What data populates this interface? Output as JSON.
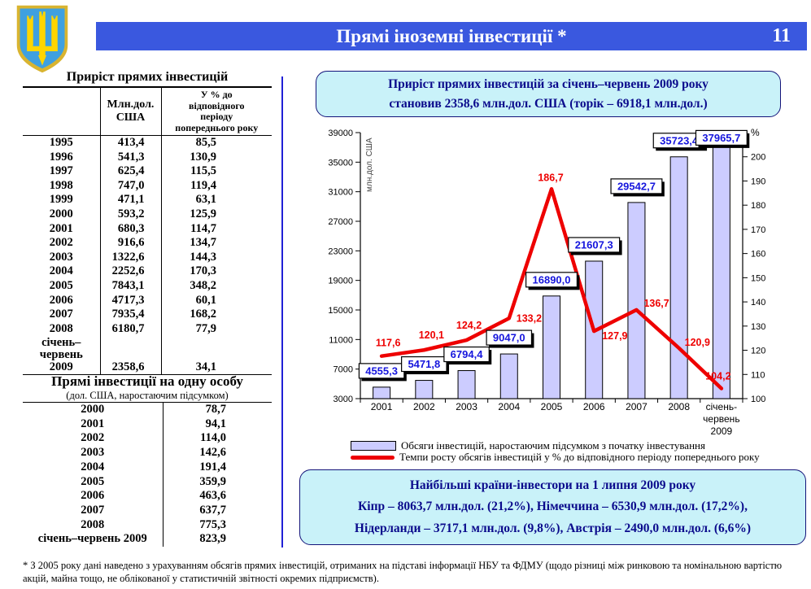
{
  "header": {
    "title": "Прямі іноземні інвестиції *",
    "page_number": "11"
  },
  "colors": {
    "header_blue": "#3a58df",
    "note_bg": "#c9f2f9",
    "note_border": "#14147a",
    "note_text": "#0a0a8c",
    "divider_blue": "#2121d6",
    "bar_fill": "#ccccff",
    "bar_stroke": "#000000",
    "line_red": "#ee0000",
    "bar_label_blue": "#1616dd"
  },
  "investment_growth_table": {
    "title": "Приріст прямих інвестицій",
    "header_value_col": "Млн.дол.\nСША",
    "header_pct_col": "У % до\nвідповідного\nперіоду\nпопереднього року",
    "rows": [
      {
        "year": "1995",
        "mln_usd": "413,4",
        "pct": "85,5"
      },
      {
        "year": "1996",
        "mln_usd": "541,3",
        "pct": "130,9"
      },
      {
        "year": "1997",
        "mln_usd": "625,4",
        "pct": "115,5"
      },
      {
        "year": "1998",
        "mln_usd": "747,0",
        "pct": "119,4"
      },
      {
        "year": "1999",
        "mln_usd": "471,1",
        "pct": "63,1"
      },
      {
        "year": "2000",
        "mln_usd": "593,2",
        "pct": "125,9"
      },
      {
        "year": "2001",
        "mln_usd": "680,3",
        "pct": "114,7"
      },
      {
        "year": "2002",
        "mln_usd": "916,6",
        "pct": "134,7"
      },
      {
        "year": "2003",
        "mln_usd": "1322,6",
        "pct": "144,3"
      },
      {
        "year": "2004",
        "mln_usd": "2252,6",
        "pct": "170,3"
      },
      {
        "year": "2005",
        "mln_usd": "7843,1",
        "pct": "348,2"
      },
      {
        "year": "2006",
        "mln_usd": "4717,3",
        "pct": "60,1"
      },
      {
        "year": "2007",
        "mln_usd": "7935,4",
        "pct": "168,2"
      },
      {
        "year": "2008",
        "mln_usd": "6180,7",
        "pct": "77,9"
      },
      {
        "year": "січень–\nчервень\n2009",
        "mln_usd": "2358,6",
        "pct": "34,1"
      }
    ]
  },
  "per_capita_table": {
    "title": "Прямі інвестиції на одну особу",
    "subtitle": "(дол. США, наростаючим підсумком)",
    "rows": [
      {
        "year": "2000",
        "value": "78,7"
      },
      {
        "year": "2001",
        "value": "94,1"
      },
      {
        "year": "2002",
        "value": "114,0"
      },
      {
        "year": "2003",
        "value": "142,6"
      },
      {
        "year": "2004",
        "value": "191,4"
      },
      {
        "year": "2005",
        "value": "359,9"
      },
      {
        "year": "2006",
        "value": "463,6"
      },
      {
        "year": "2007",
        "value": "637,7"
      },
      {
        "year": "2008",
        "value": "775,3"
      },
      {
        "year": "січень–червень 2009",
        "value": "823,9"
      }
    ]
  },
  "top_note": {
    "lines": [
      "Приріст прямих інвестицій за січень–червень 2009 року",
      "становив 2358,6 млн.дол. США (торік – 6918,1 млн.дол.)"
    ]
  },
  "bottom_note": {
    "lines": [
      "Найбільші країни-інвестори на 1 липня 2009 року",
      "Кіпр – 8063,7 млн.дол. (21,2%), Німеччина – 6530,9 млн.дол. (17,2%),",
      "Нідерланди – 3717,1 млн.дол. (9,8%), Австрія – 2490,0 млн.дол. (6,6%)"
    ]
  },
  "footnote": "* З 2005 року дані наведено з урахуванням обсягів прямих інвестицій, отриманих на підставі інформації НБУ та ФДМУ (щодо різниці між ринковою та номінальною вартістю акцій, майна тощо, не облікованої у статистичній звітності окремих підприємств).",
  "chart_data": {
    "type": "bar",
    "combo": "bar+line, dual axis",
    "categories": [
      "2001",
      "2002",
      "2003",
      "2004",
      "2005",
      "2006",
      "2007",
      "2008",
      "січень-\nчервень\n2009"
    ],
    "series": [
      {
        "name": "Обсяги інвестицій, наростаючим підсумком з початку інвестування",
        "type": "bar",
        "axis": "left",
        "values": [
          4555.3,
          5471.8,
          6794.4,
          9047.0,
          16890.0,
          21607.3,
          29542.7,
          35723.4,
          37965.7
        ],
        "labels": [
          "4555,3",
          "5471,8",
          "6794,4",
          "9047,0",
          "16890,0",
          "21607,3",
          "29542,7",
          "35723,4",
          "37965,7"
        ]
      },
      {
        "name": "Темпи росту обсягів інвестицій у % до відповідного періоду попереднього року",
        "type": "line",
        "axis": "right",
        "values": [
          117.6,
          120.1,
          124.2,
          133.2,
          186.7,
          127.9,
          136.7,
          120.9,
          104.2
        ],
        "labels": [
          "117,6",
          "120,1",
          "124,2",
          "133,2",
          "186,7",
          "127,9",
          "136,7",
          "120,9",
          "104,2"
        ]
      }
    ],
    "left_axis": {
      "title": "млн.дол. США",
      "min": 3000,
      "max": 39000,
      "step": 4000
    },
    "right_axis": {
      "title": "%",
      "min": 100,
      "max": 200,
      "step": 10
    },
    "grid": false,
    "legend_position": "bottom"
  }
}
